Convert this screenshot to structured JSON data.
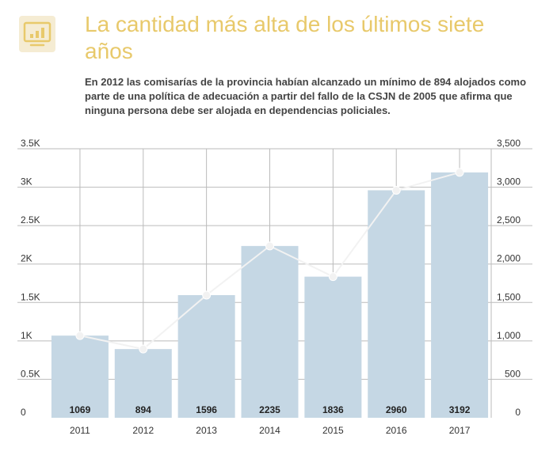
{
  "header": {
    "icon": "monitor-chart-icon",
    "title": "La cantidad más alta de los últimos siete años",
    "subtitle": "En 2012 las comisarías de la provincia habían alcanzado un mínimo de 894 alojados como parte de una política de adecuación a partir del fallo de la CSJN de 2005 que afirma que ninguna persona debe ser alojada en dependencias policiales."
  },
  "colors": {
    "bar": "#c5d7e4",
    "line": "#f2f2f2",
    "grid": "#bbbbbb",
    "title": "#e8c96b"
  },
  "chart_data": {
    "type": "bar",
    "categories": [
      "2011",
      "2012",
      "2013",
      "2014",
      "2015",
      "2016",
      "2017"
    ],
    "values": [
      1069,
      894,
      1596,
      2235,
      1836,
      2960,
      3192
    ],
    "bar_labels": [
      "1069",
      "894",
      "1596",
      "2235",
      "1836",
      "2960",
      "3192"
    ],
    "line_series": {
      "values": [
        1069,
        894,
        1596,
        2235,
        1836,
        2960,
        3192
      ]
    },
    "ylim": [
      0,
      3500
    ],
    "left_ticks": [
      "0",
      "0.5K",
      "1K",
      "1.5K",
      "2K",
      "2.5K",
      "3K",
      "3.5K"
    ],
    "right_ticks": [
      "0",
      "500",
      "1,000",
      "1,500",
      "2,000",
      "2,500",
      "3,000",
      "3,500"
    ],
    "grid": true
  }
}
